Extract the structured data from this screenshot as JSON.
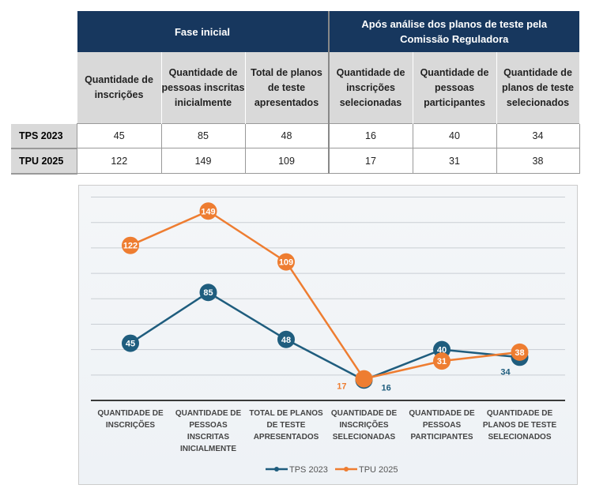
{
  "table": {
    "groups": [
      "Fase inicial",
      "Após análise dos planos de teste pela Comissão Reguladora"
    ],
    "columns": [
      "Quantidade de inscrições",
      "Quantidade de pessoas inscritas inicialmente",
      "Total de planos de teste apresentados",
      "Quantidade de inscrições selecionadas",
      "Quantidade de pessoas participantes",
      "Quantidade de planos de teste selecionados"
    ],
    "rows": [
      {
        "label": "TPS 2023",
        "values": [
          "45",
          "85",
          "48",
          "16",
          "40",
          "34"
        ]
      },
      {
        "label": "TPU 2025",
        "values": [
          "122",
          "149",
          "109",
          "17",
          "31",
          "38"
        ]
      }
    ]
  },
  "chart_data": {
    "type": "line",
    "categories": [
      "QUANTIDADE DE INSCRIÇÕES",
      "QUANTIDADE DE PESSOAS INSCRITAS INICIALMENTE",
      "TOTAL DE PLANOS DE TESTE APRESENTADOS",
      "QUANTIDADE DE INSCRIÇÕES SELECIONADAS",
      "QUANTIDADE DE PESSOAS PARTICIPANTES",
      "QUANTIDADE DE PLANOS DE TESTE SELECIONADOS"
    ],
    "series": [
      {
        "name": "TPS 2023",
        "values": [
          45,
          85,
          48,
          16,
          40,
          34
        ],
        "color": "#1f5d7e"
      },
      {
        "name": "TPU 2025",
        "values": [
          122,
          149,
          109,
          17,
          31,
          38
        ],
        "color": "#ee7d31"
      }
    ],
    "ylim": [
      0,
      160
    ],
    "grid": true,
    "legend": "bottom",
    "data_labels": true
  }
}
